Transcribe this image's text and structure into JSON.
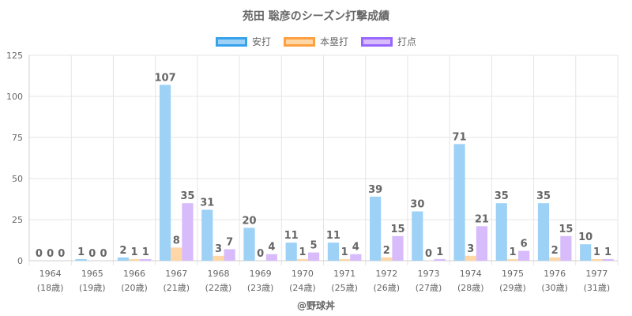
{
  "chart_data": {
    "type": "bar",
    "title": "苑田 聡彦のシーズン打撃成績",
    "categories": [
      "1964",
      "1965",
      "1966",
      "1967",
      "1968",
      "1969",
      "1970",
      "1971",
      "1972",
      "1973",
      "1974",
      "1975",
      "1976",
      "1977"
    ],
    "category_sublabels": [
      "(18歳)",
      "(19歳)",
      "(20歳)",
      "(21歳)",
      "(22歳)",
      "(23歳)",
      "(24歳)",
      "(25歳)",
      "(26歳)",
      "(27歳)",
      "(28歳)",
      "(29歳)",
      "(30歳)",
      "(31歳)"
    ],
    "series": [
      {
        "name": "安打",
        "color": "#9ed1f6",
        "border": "#36a2eb",
        "values": [
          0,
          1,
          2,
          107,
          31,
          20,
          11,
          11,
          39,
          30,
          71,
          35,
          35,
          10
        ]
      },
      {
        "name": "本塁打",
        "color": "#ffd7a6",
        "border": "#ff9f40",
        "values": [
          0,
          0,
          1,
          8,
          3,
          0,
          1,
          1,
          2,
          0,
          3,
          1,
          2,
          1
        ]
      },
      {
        "name": "打点",
        "color": "#d7bbfb",
        "border": "#9966ff",
        "values": [
          0,
          0,
          1,
          35,
          7,
          4,
          5,
          4,
          15,
          1,
          21,
          6,
          15,
          1
        ]
      }
    ],
    "ylim": [
      0,
      125
    ],
    "yticks": [
      0,
      25,
      50,
      75,
      100,
      125
    ],
    "xlabel": "",
    "ylabel": "",
    "legend_position": "top",
    "grid": true
  },
  "credit": "@野球丼"
}
